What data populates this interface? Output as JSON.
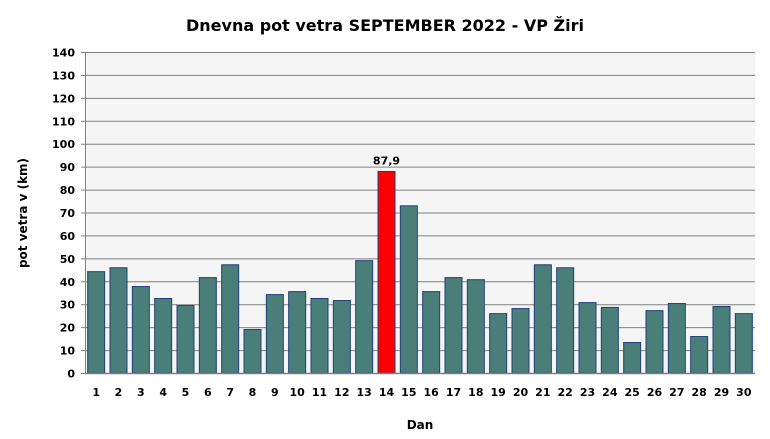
{
  "chart_data": {
    "type": "bar",
    "title": "Dnevna pot vetra SEPTEMBER 2022 - VP Žiri",
    "xlabel": "Dan",
    "ylabel": "pot vetra  v (km)",
    "ylim": [
      0,
      140
    ],
    "yticks": [
      0,
      10,
      20,
      30,
      40,
      50,
      60,
      70,
      80,
      90,
      100,
      110,
      120,
      130,
      140
    ],
    "grid": true,
    "categories": [
      "1",
      "2",
      "3",
      "4",
      "5",
      "6",
      "7",
      "8",
      "9",
      "10",
      "11",
      "12",
      "13",
      "14",
      "15",
      "16",
      "17",
      "18",
      "19",
      "20",
      "21",
      "22",
      "23",
      "24",
      "25",
      "26",
      "27",
      "28",
      "29",
      "30"
    ],
    "values": [
      44.2,
      45.9,
      37.7,
      32.5,
      29.4,
      41.6,
      47.2,
      19.0,
      34.2,
      35.5,
      32.5,
      31.6,
      49.0,
      87.9,
      72.9,
      35.5,
      41.6,
      40.7,
      25.9,
      28.1,
      47.2,
      45.9,
      30.7,
      28.6,
      13.3,
      27.2,
      30.3,
      15.9,
      29.0,
      25.9
    ],
    "highlight_index": 13,
    "highlight_label": "87,9",
    "colors": {
      "bar": "#4a7e78",
      "bar_border": "#1f3f7a",
      "highlight": "#ff0000",
      "plot_bg": "#f5f5f5",
      "grid": "#808080"
    }
  }
}
